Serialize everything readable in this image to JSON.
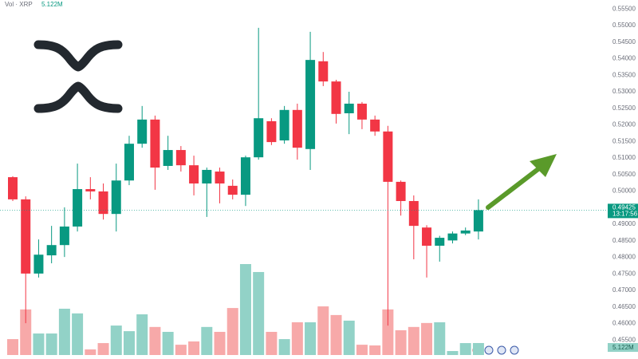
{
  "chart_data": {
    "type": "candlestick",
    "header": "Vol · XRP",
    "volume_label": "5.122M",
    "countdown": "13:17:56",
    "up_color": "#089981",
    "down_color": "#f23645",
    "volume_up_color": "#92d2c7",
    "volume_down_color": "#f7a9a9",
    "ylim": [
      0.4493,
      0.5577
    ],
    "yticks": [
      {
        "value": 0.455,
        "label": "0.45500"
      },
      {
        "value": 0.46,
        "label": "0.46000"
      },
      {
        "value": 0.465,
        "label": "0.46500"
      },
      {
        "value": 0.47,
        "label": "0.47000"
      },
      {
        "value": 0.475,
        "label": "0.47500"
      },
      {
        "value": 0.48,
        "label": "0.48000"
      },
      {
        "value": 0.485,
        "label": "0.48500"
      },
      {
        "value": 0.49,
        "label": "0.49000"
      },
      {
        "value": 0.495,
        "label": "0.49500"
      },
      {
        "value": 0.5,
        "label": "0.50000"
      },
      {
        "value": 0.505,
        "label": "0.50500"
      },
      {
        "value": 0.51,
        "label": "0.51000"
      },
      {
        "value": 0.515,
        "label": "0.51500"
      },
      {
        "value": 0.52,
        "label": "0.52000"
      },
      {
        "value": 0.525,
        "label": "0.52500"
      },
      {
        "value": 0.53,
        "label": "0.53000"
      },
      {
        "value": 0.535,
        "label": "0.53500"
      },
      {
        "value": 0.54,
        "label": "0.54000"
      },
      {
        "value": 0.545,
        "label": "0.54500"
      },
      {
        "value": 0.55,
        "label": "0.55000"
      },
      {
        "value": 0.555,
        "label": "0.55500"
      }
    ],
    "open": [
      0.5042,
      0.4975,
      0.4751,
      0.4806,
      0.4837,
      0.4893,
      0.5006,
      0.4999,
      0.4931,
      0.5032,
      0.5143,
      0.5216,
      0.5076,
      0.5124,
      0.5078,
      0.5023,
      0.5059,
      0.5016,
      0.4989,
      0.5102,
      0.5211,
      0.5153,
      0.5245,
      0.5127,
      0.5392,
      0.5331,
      0.5235,
      0.5264,
      0.5216,
      0.518,
      0.5028,
      0.497,
      0.489,
      0.4835,
      0.4851,
      0.4872,
      0.4878
    ],
    "high": [
      0.5045,
      0.4984,
      0.4854,
      0.4895,
      0.4951,
      0.5083,
      0.5042,
      0.5023,
      0.5083,
      0.5167,
      0.5257,
      0.5228,
      0.5167,
      0.5136,
      0.5107,
      0.5071,
      0.5071,
      0.5035,
      0.5107,
      0.5493,
      0.522,
      0.5257,
      0.5264,
      0.5481,
      0.542,
      0.5336,
      0.53,
      0.5269,
      0.5228,
      0.5197,
      0.5032,
      0.4987,
      0.4897,
      0.4865,
      0.4878,
      0.489,
      0.4975
    ],
    "low": [
      0.497,
      0.4601,
      0.4739,
      0.4782,
      0.4801,
      0.4878,
      0.4975,
      0.4914,
      0.4878,
      0.5018,
      0.5131,
      0.5004,
      0.5064,
      0.5059,
      0.4987,
      0.4922,
      0.4963,
      0.4975,
      0.4955,
      0.5095,
      0.5139,
      0.5143,
      0.5095,
      0.5064,
      0.5317,
      0.5204,
      0.5172,
      0.5187,
      0.5167,
      0.4594,
      0.4926,
      0.4794,
      0.4739,
      0.4787,
      0.4842,
      0.4867,
      0.4854
    ],
    "close": [
      0.4975,
      0.4751,
      0.4808,
      0.4837,
      0.4893,
      0.5006,
      0.4999,
      0.4931,
      0.5032,
      0.5143,
      0.5216,
      0.5071,
      0.5124,
      0.5078,
      0.5023,
      0.5064,
      0.5023,
      0.4989,
      0.5102,
      0.522,
      0.5148,
      0.5245,
      0.5131,
      0.5396,
      0.5331,
      0.5233,
      0.5264,
      0.5216,
      0.518,
      0.5028,
      0.497,
      0.4895,
      0.4835,
      0.4859,
      0.4872,
      0.4881,
      0.49425
    ],
    "volume": [
      6.8,
      19.5,
      9.2,
      9.2,
      19.8,
      17.8,
      2.4,
      5.1,
      12.6,
      10.2,
      17.4,
      12.0,
      9.9,
      4.4,
      5.8,
      12.0,
      9.9,
      20.1,
      38.9,
      35.5,
      9.9,
      6.8,
      14.0,
      14.0,
      20.8,
      17.1,
      14.7,
      4.4,
      4.1,
      19.5,
      10.6,
      12.0,
      13.7,
      14.0,
      1.7,
      5.1,
      5.122
    ]
  }
}
